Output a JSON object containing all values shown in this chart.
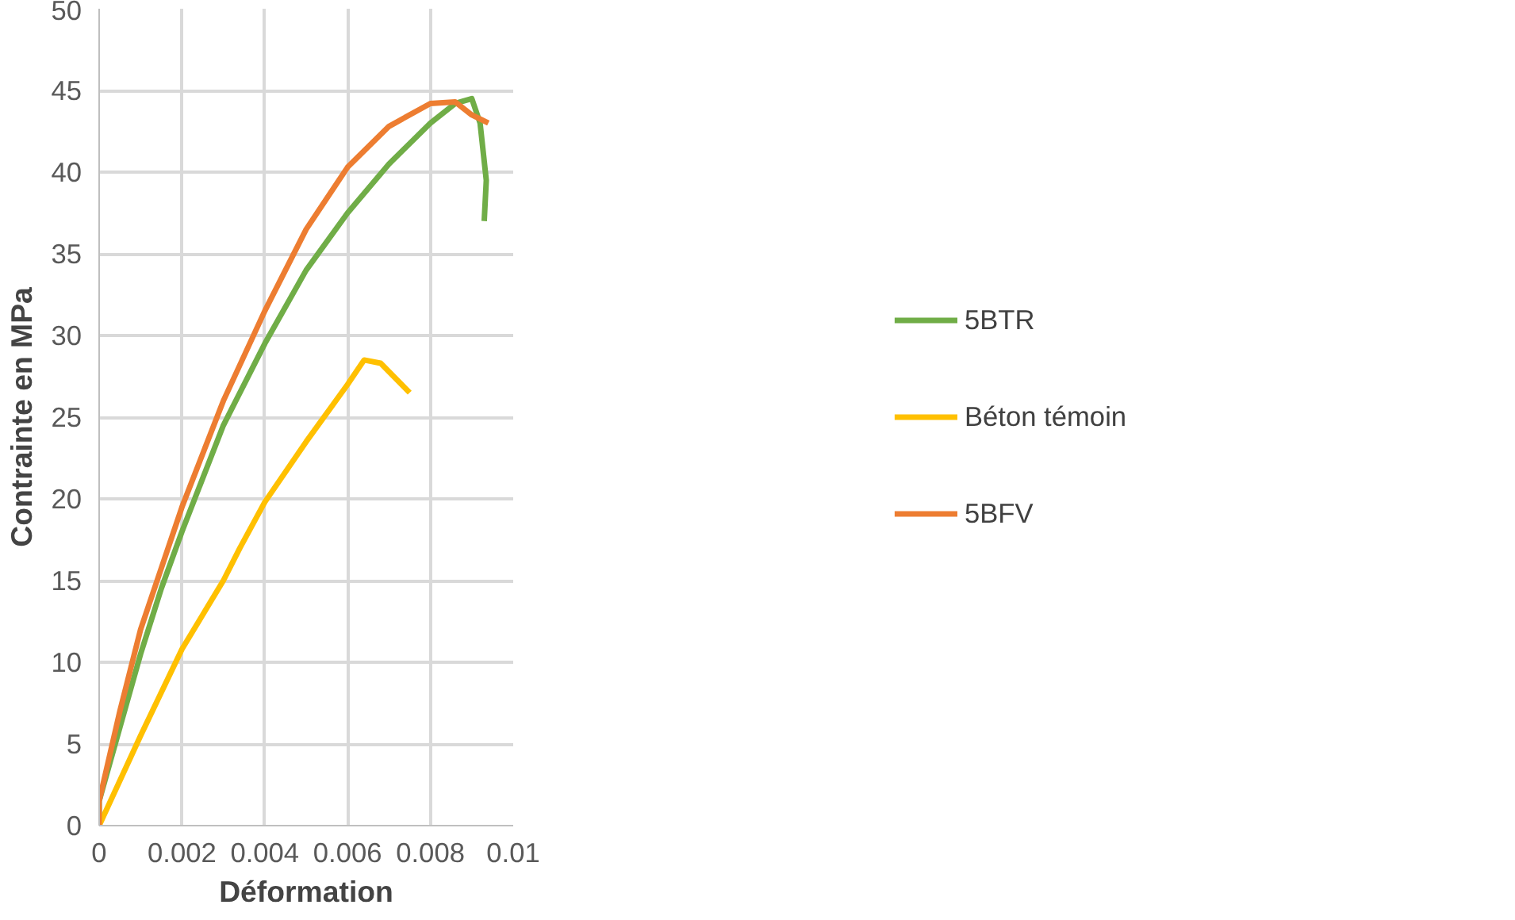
{
  "chart_data": {
    "type": "line",
    "xlabel": "Déformation",
    "ylabel": "Contrainte en MPa",
    "xlim": [
      0,
      0.01
    ],
    "ylim": [
      0,
      50
    ],
    "xticks": [
      {
        "value": 0,
        "label": "0"
      },
      0.002,
      0.004,
      0.006,
      0.008,
      0.01
    ],
    "yticks": [
      0,
      5,
      10,
      15,
      20,
      25,
      30,
      35,
      40,
      45,
      50
    ],
    "grid": true,
    "legend": "right",
    "marker": "none",
    "line_style": "solid",
    "series": [
      {
        "name": "5BTR",
        "color": "#70ad47",
        "x": [
          0,
          0,
          0.0005,
          0.001,
          0.0015,
          0.002,
          0.003,
          0.004,
          0.005,
          0.006,
          0.007,
          0.008,
          0.0086,
          0.009,
          0.0092,
          0.00935,
          0.0093
        ],
        "values": [
          0,
          1.5,
          6,
          10.5,
          14.5,
          18,
          24.5,
          29.5,
          34,
          37.5,
          40.5,
          43,
          44.2,
          44.5,
          43,
          39.5,
          37
        ]
      },
      {
        "name": "Béton témoin",
        "color": "#ffc000",
        "x": [
          0,
          0.001,
          0.002,
          0.003,
          0.0034,
          0.004,
          0.005,
          0.006,
          0.0064,
          0.0068,
          0.0075
        ],
        "values": [
          0,
          5.5,
          10.8,
          15,
          17,
          19.8,
          23.5,
          27,
          28.5,
          28.3,
          26.5
        ]
      },
      {
        "name": "5BFV",
        "color": "#ed7d31",
        "x": [
          0,
          0,
          0.0005,
          0.001,
          0.002,
          0.003,
          0.004,
          0.005,
          0.006,
          0.007,
          0.008,
          0.0086,
          0.009,
          0.0094
        ],
        "values": [
          0,
          1.5,
          7,
          12,
          19.5,
          26,
          31.5,
          36.5,
          40.3,
          42.8,
          44.2,
          44.3,
          43.5,
          43
        ]
      }
    ]
  }
}
